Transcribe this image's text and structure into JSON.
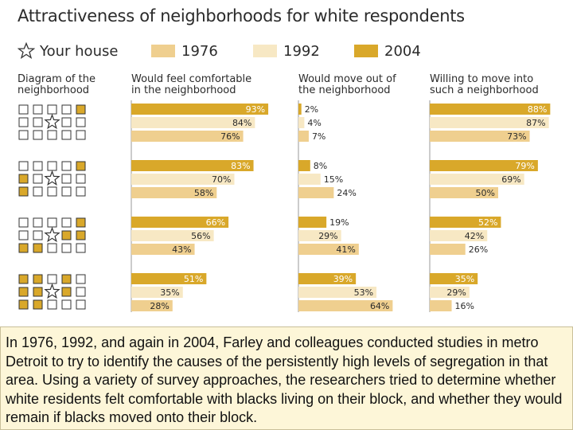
{
  "page_title": "Attractiveness of neighborhoods for white respondents",
  "legend": {
    "your_house": "Your house",
    "years": [
      "1976",
      "1992",
      "2004"
    ]
  },
  "colors": {
    "y1976": "#efcf8f",
    "y1992": "#f7e8c4",
    "y2004": "#d9a82a",
    "square_black_fill": "#d9a82a",
    "square_outline": "#333333",
    "text_dark": "#2b2b2b",
    "label_on_dark": "#ffffff"
  },
  "column_headers": {
    "diagram": "Diagram of the\nneighborhood",
    "comfortable": "Would feel comfortable\nin the neighborhood",
    "move_out": "Would move out of\nthe neighborhood",
    "willing": "Willing to move into\nsuch a neighborhood"
  },
  "chart_data": {
    "type": "bar",
    "orientation": "horizontal",
    "title": "Attractiveness of neighborhoods for white respondents",
    "series_order": [
      "2004",
      "1992",
      "1976"
    ],
    "groups": [
      {
        "diagram_black_squares": 1,
        "comfortable": {
          "2004": 93,
          "1992": 84,
          "1976": 76
        },
        "move_out": {
          "2004": 2,
          "1992": 4,
          "1976": 7
        },
        "willing": {
          "2004": 88,
          "1992": 87,
          "1976": 73
        }
      },
      {
        "diagram_black_squares": 3,
        "comfortable": {
          "2004": 83,
          "1992": 70,
          "1976": 58
        },
        "move_out": {
          "2004": 8,
          "1992": 15,
          "1976": 24
        },
        "willing": {
          "2004": 79,
          "1992": 69,
          "1976": 50
        }
      },
      {
        "diagram_black_squares": 5,
        "comfortable": {
          "2004": 66,
          "1992": 56,
          "1976": 43
        },
        "move_out": {
          "2004": 19,
          "1992": 29,
          "1976": 41
        },
        "willing": {
          "2004": 52,
          "1992": 42,
          "1976": 26
        }
      },
      {
        "diagram_black_squares": 8,
        "comfortable": {
          "2004": 51,
          "1992": 35,
          "1976": 28
        },
        "move_out": {
          "2004": 39,
          "1992": 53,
          "1976": 64
        },
        "willing": {
          "2004": 35,
          "1992": 29,
          "1976": 16
        }
      }
    ],
    "value_suffix": "%",
    "xlim": [
      0,
      100
    ]
  },
  "caption": "In 1976, 1992, and again in 2004, Farley and colleagues conducted studies in metro Detroit to try to identify the causes of the persistently high levels of segregation in that area. Using a variety of survey approaches, the researchers tried to determine whether white residents felt comfortable with blacks living on their block, and whether they would remain if blacks moved onto their block."
}
